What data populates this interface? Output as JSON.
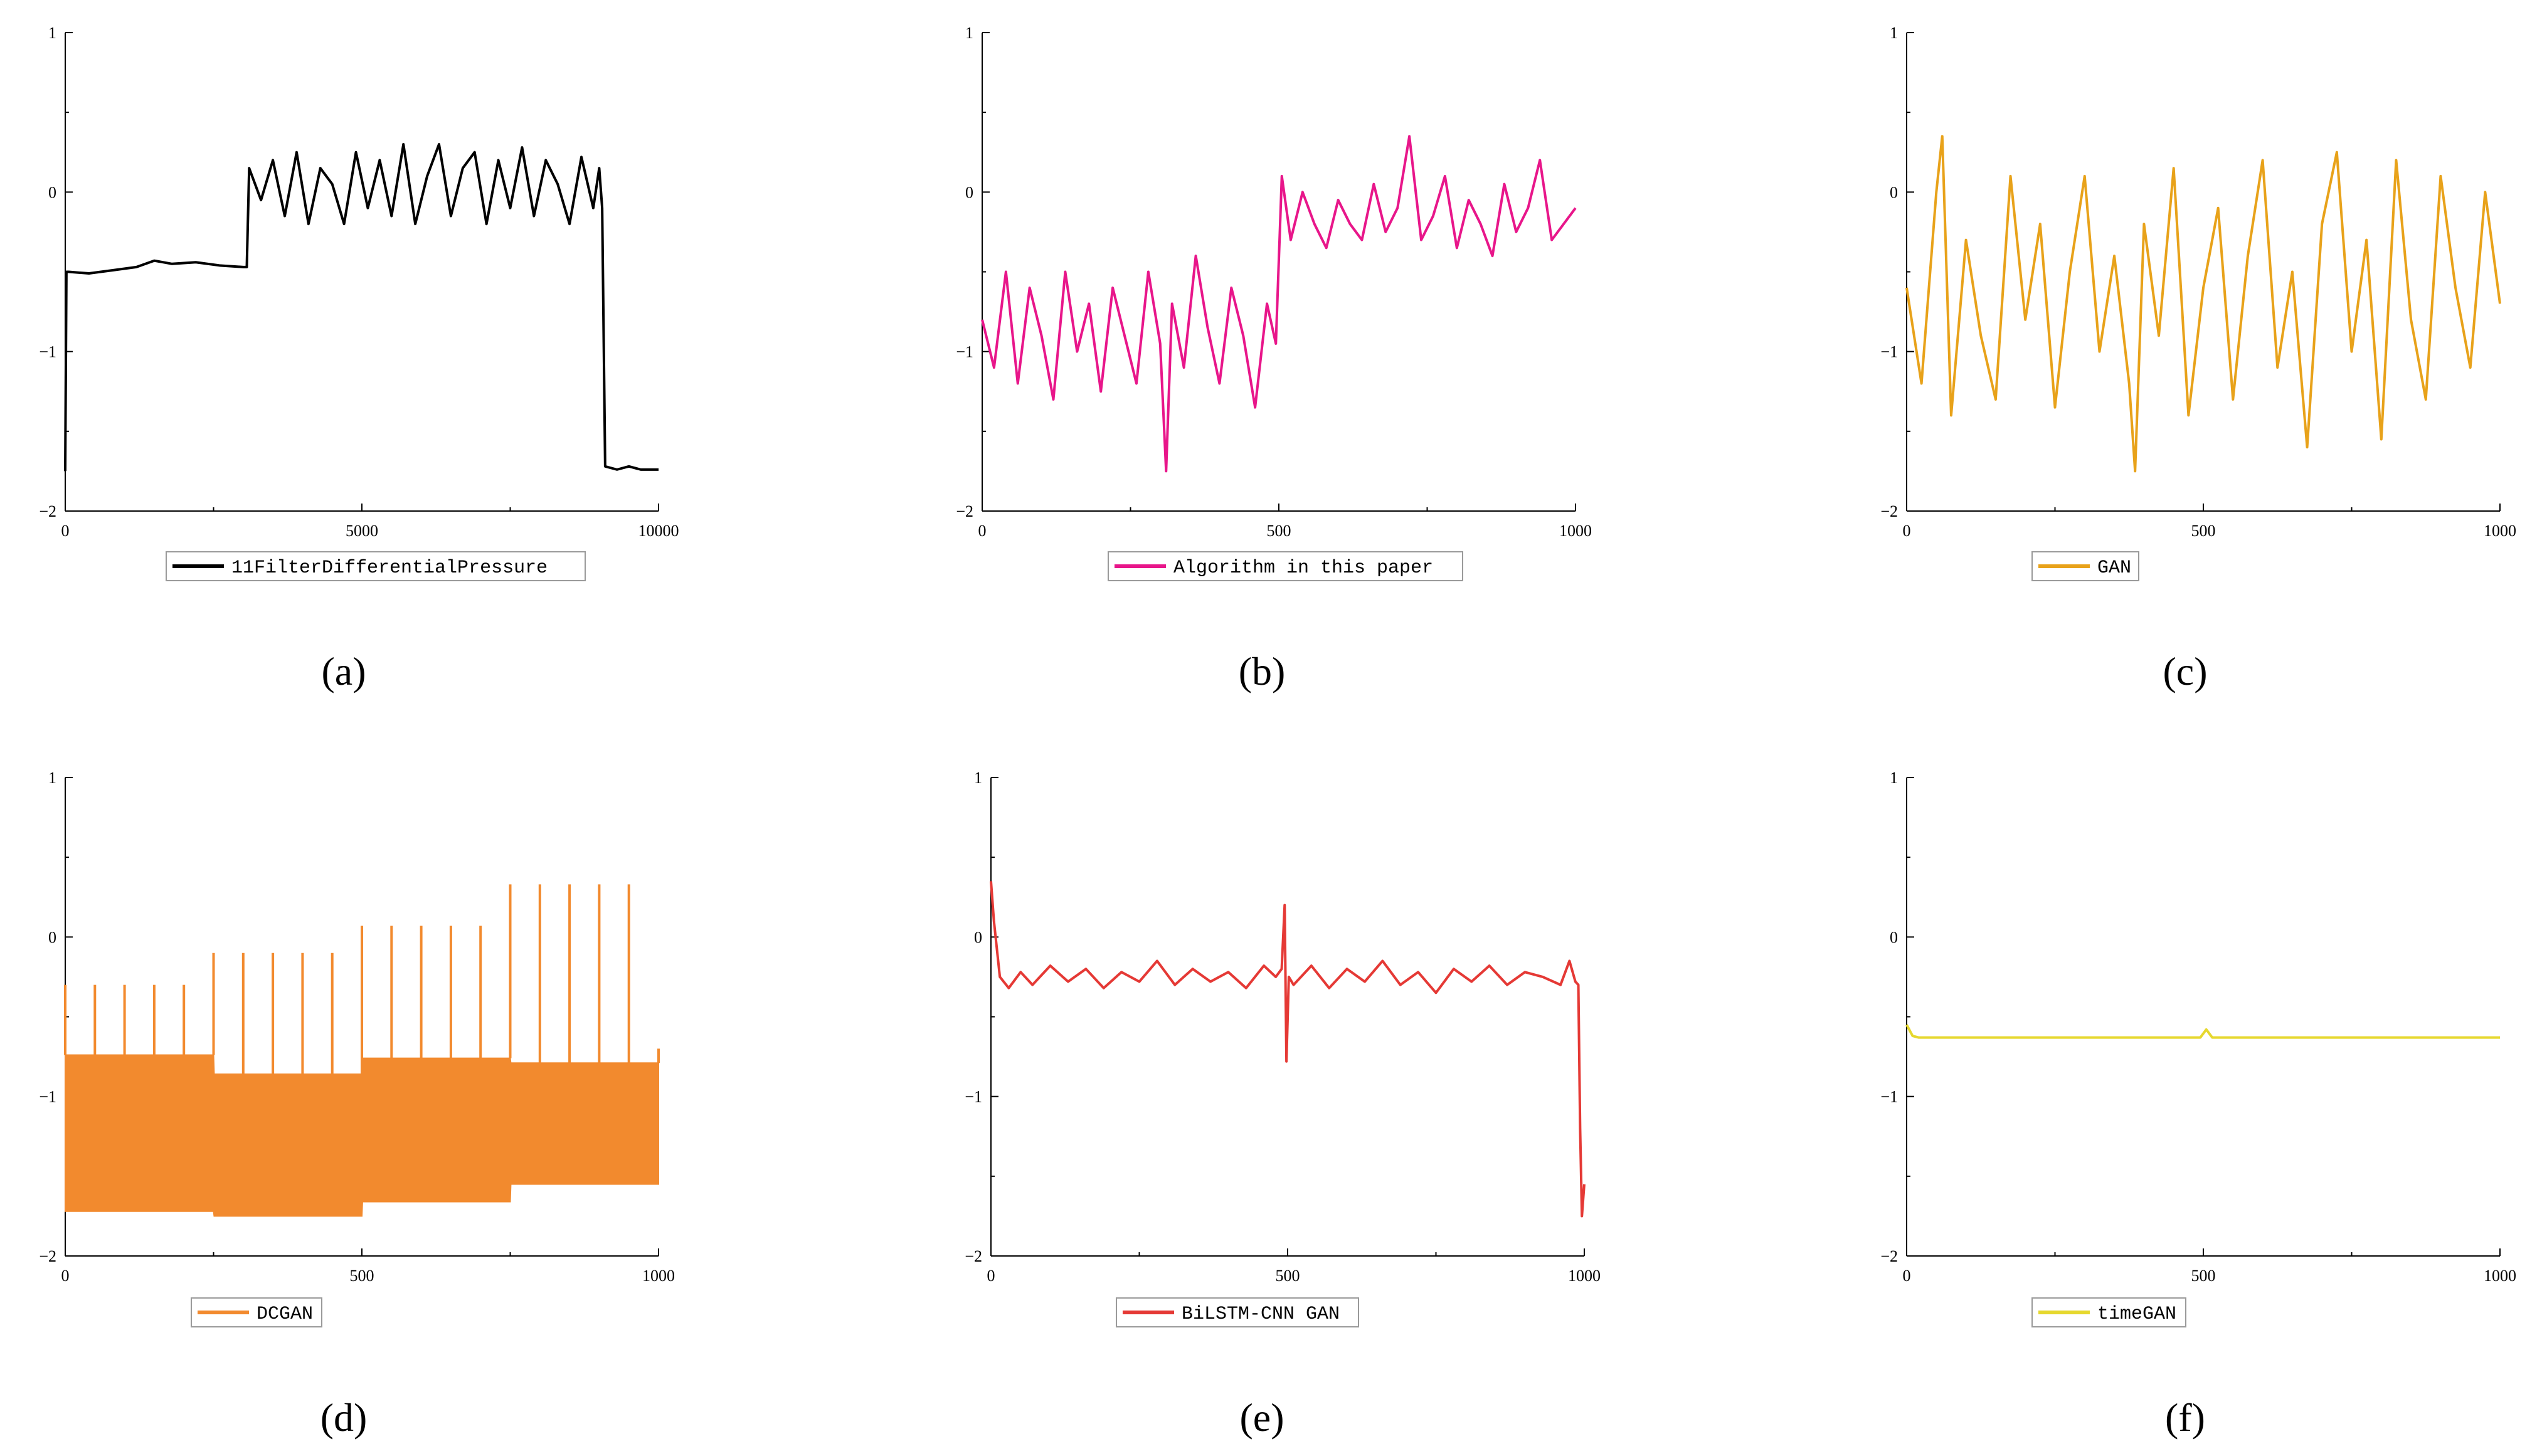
{
  "chart_data": [
    {
      "type": "line",
      "panel_label": "(a)",
      "xlim": [
        0,
        10000
      ],
      "ylim": [
        -2,
        1
      ],
      "xticks": [
        "0",
        "5000",
        "10000"
      ],
      "yticks": [
        "1",
        "0",
        "−1",
        "−2"
      ],
      "series": [
        {
          "name": "11FilterDifferentialPressure",
          "color": "#000000",
          "x": [
            0,
            20,
            60,
            400,
            800,
            1200,
            1500,
            1800,
            2200,
            2600,
            3000,
            3060,
            3100,
            3300,
            3500,
            3700,
            3900,
            4100,
            4300,
            4500,
            4700,
            4900,
            5100,
            5300,
            5500,
            5700,
            5900,
            6100,
            6300,
            6500,
            6700,
            6900,
            7100,
            7300,
            7500,
            7700,
            7900,
            8100,
            8300,
            8500,
            8700,
            8900,
            9000,
            9050,
            9100,
            9300,
            9500,
            9700,
            10000
          ],
          "y": [
            -1.75,
            -0.5,
            -0.5,
            -0.51,
            -0.49,
            -0.47,
            -0.43,
            -0.45,
            -0.44,
            -0.46,
            -0.47,
            -0.47,
            0.15,
            -0.05,
            0.2,
            -0.15,
            0.25,
            -0.2,
            0.15,
            0.05,
            -0.2,
            0.25,
            -0.1,
            0.2,
            -0.15,
            0.3,
            -0.2,
            0.1,
            0.3,
            -0.15,
            0.15,
            0.25,
            -0.2,
            0.2,
            -0.1,
            0.28,
            -0.15,
            0.2,
            0.05,
            -0.2,
            0.22,
            -0.1,
            0.15,
            -0.1,
            -1.72,
            -1.74,
            -1.72,
            -1.74,
            -1.74
          ]
        }
      ]
    },
    {
      "type": "line",
      "panel_label": "(b)",
      "xlim": [
        0,
        1000
      ],
      "ylim": [
        -2,
        1
      ],
      "xticks": [
        "0",
        "500",
        "1000"
      ],
      "yticks": [
        "1",
        "0",
        "−1",
        "−2"
      ],
      "series": [
        {
          "name": "Algorithm in this paper",
          "color": "#e8168a",
          "x": [
            0,
            20,
            40,
            60,
            80,
            100,
            120,
            140,
            160,
            180,
            200,
            220,
            240,
            260,
            280,
            300,
            310,
            320,
            340,
            360,
            380,
            400,
            420,
            440,
            460,
            480,
            495,
            505,
            520,
            540,
            560,
            580,
            600,
            620,
            640,
            660,
            680,
            700,
            720,
            740,
            760,
            780,
            800,
            820,
            840,
            860,
            880,
            900,
            920,
            940,
            960,
            1000
          ],
          "y": [
            -0.8,
            -1.1,
            -0.5,
            -1.2,
            -0.6,
            -0.9,
            -1.3,
            -0.5,
            -1.0,
            -0.7,
            -1.25,
            -0.6,
            -0.9,
            -1.2,
            -0.5,
            -0.95,
            -1.75,
            -0.7,
            -1.1,
            -0.4,
            -0.85,
            -1.2,
            -0.6,
            -0.9,
            -1.35,
            -0.7,
            -0.95,
            0.1,
            -0.3,
            0.0,
            -0.2,
            -0.35,
            -0.05,
            -0.2,
            -0.3,
            0.05,
            -0.25,
            -0.1,
            0.35,
            -0.3,
            -0.15,
            0.1,
            -0.35,
            -0.05,
            -0.2,
            -0.4,
            0.05,
            -0.25,
            -0.1,
            0.2,
            -0.3,
            -0.1
          ]
        }
      ]
    },
    {
      "type": "line",
      "panel_label": "(c)",
      "xlim": [
        0,
        1000
      ],
      "ylim": [
        -2,
        1
      ],
      "xticks": [
        "0",
        "500",
        "1000"
      ],
      "yticks": [
        "1",
        "0",
        "−1",
        "−2"
      ],
      "series": [
        {
          "name": "GAN",
          "color": "#e8a21a",
          "x": [
            0,
            25,
            50,
            60,
            75,
            100,
            125,
            150,
            175,
            200,
            225,
            250,
            275,
            300,
            325,
            350,
            375,
            385,
            400,
            425,
            450,
            475,
            500,
            525,
            550,
            575,
            600,
            625,
            650,
            675,
            700,
            725,
            750,
            775,
            800,
            825,
            850,
            875,
            900,
            925,
            950,
            975,
            1000
          ],
          "y": [
            -0.6,
            -1.2,
            0.0,
            0.35,
            -1.4,
            -0.3,
            -0.9,
            -1.3,
            0.1,
            -0.8,
            -0.2,
            -1.35,
            -0.5,
            0.1,
            -1.0,
            -0.4,
            -1.2,
            -1.75,
            -0.2,
            -0.9,
            0.15,
            -1.4,
            -0.6,
            -0.1,
            -1.3,
            -0.4,
            0.2,
            -1.1,
            -0.5,
            -1.6,
            -0.2,
            0.25,
            -1.0,
            -0.3,
            -1.55,
            0.2,
            -0.8,
            -1.3,
            0.1,
            -0.6,
            -1.1,
            0.0,
            -0.7
          ]
        }
      ]
    },
    {
      "type": "line",
      "panel_label": "(d)",
      "xlim": [
        0,
        1000
      ],
      "ylim": [
        -2,
        1
      ],
      "xticks": [
        "0",
        "500",
        "1000"
      ],
      "yticks": [
        "1",
        "0",
        "−1",
        "−2"
      ],
      "series": [
        {
          "name": "DCGAN",
          "color": "#f28a2e",
          "x": [
            0,
            250,
            251,
            500,
            501,
            750,
            751,
            1000
          ],
          "y_upper": [
            -0.74,
            -0.74,
            -0.86,
            -0.86,
            -0.76,
            -0.76,
            -0.79,
            -0.79
          ],
          "y_lower": [
            -1.72,
            -1.72,
            -1.75,
            -1.75,
            -1.66,
            -1.66,
            -1.55,
            -1.55
          ],
          "spikes_x": [
            0,
            50,
            100,
            150,
            200,
            250,
            300,
            350,
            400,
            450,
            500,
            550,
            600,
            650,
            700,
            750,
            800,
            850,
            900,
            950,
            1000
          ],
          "spikes_y": [
            -0.3,
            -0.3,
            -0.3,
            -0.3,
            -0.3,
            -0.1,
            -0.1,
            -0.1,
            -0.1,
            -0.1,
            0.07,
            0.07,
            0.07,
            0.07,
            0.07,
            0.33,
            0.33,
            0.33,
            0.33,
            0.33,
            -0.7
          ]
        }
      ]
    },
    {
      "type": "line",
      "panel_label": "(e)",
      "xlim": [
        0,
        1000
      ],
      "ylim": [
        -2,
        1
      ],
      "xticks": [
        "0",
        "500",
        "1000"
      ],
      "yticks": [
        "1",
        "0",
        "−1",
        "−2"
      ],
      "series": [
        {
          "name": "BiLSTM-CNN GAN",
          "color": "#e53935",
          "x": [
            0,
            5,
            15,
            30,
            50,
            70,
            100,
            130,
            160,
            190,
            220,
            250,
            280,
            310,
            340,
            370,
            400,
            430,
            460,
            480,
            490,
            495,
            498,
            502,
            510,
            540,
            570,
            600,
            630,
            660,
            690,
            720,
            750,
            780,
            810,
            840,
            870,
            900,
            930,
            960,
            975,
            985,
            990,
            993,
            996,
            1000
          ],
          "y": [
            0.35,
            0.1,
            -0.25,
            -0.32,
            -0.22,
            -0.3,
            -0.18,
            -0.28,
            -0.2,
            -0.32,
            -0.22,
            -0.28,
            -0.15,
            -0.3,
            -0.2,
            -0.28,
            -0.22,
            -0.32,
            -0.18,
            -0.25,
            -0.2,
            0.2,
            -0.78,
            -0.25,
            -0.3,
            -0.18,
            -0.32,
            -0.2,
            -0.28,
            -0.15,
            -0.3,
            -0.22,
            -0.35,
            -0.2,
            -0.28,
            -0.18,
            -0.3,
            -0.22,
            -0.25,
            -0.3,
            -0.15,
            -0.28,
            -0.3,
            -1.2,
            -1.75,
            -1.55
          ]
        }
      ]
    },
    {
      "type": "line",
      "panel_label": "(f)",
      "xlim": [
        0,
        1000
      ],
      "ylim": [
        -2,
        1
      ],
      "xticks": [
        "0",
        "500",
        "1000"
      ],
      "yticks": [
        "1",
        "0",
        "−1",
        "−2"
      ],
      "series": [
        {
          "name": "timeGAN",
          "color": "#e6d82e",
          "x": [
            0,
            10,
            20,
            100,
            300,
            495,
            505,
            515,
            700,
            900,
            1000
          ],
          "y": [
            -0.55,
            -0.62,
            -0.63,
            -0.63,
            -0.63,
            -0.63,
            -0.58,
            -0.63,
            -0.63,
            -0.63,
            -0.63
          ]
        }
      ]
    }
  ]
}
